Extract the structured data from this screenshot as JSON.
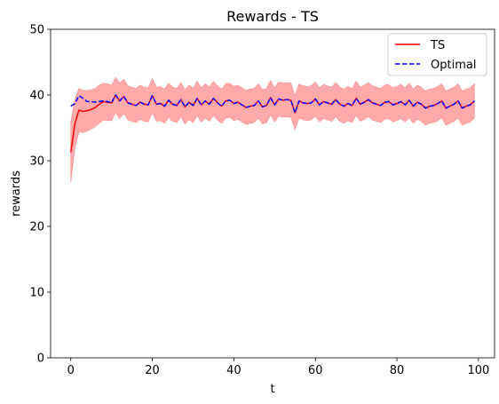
{
  "chart_data": {
    "type": "line",
    "title": "Rewards - TS",
    "xlabel": "t",
    "ylabel": "rewards",
    "xlim": [
      -4.95,
      103.95
    ],
    "ylim": [
      0,
      50
    ],
    "xticks": [
      0,
      20,
      40,
      60,
      80,
      100
    ],
    "yticks": [
      0,
      10,
      20,
      30,
      40,
      50
    ],
    "grid": false,
    "legend_position": "top-right",
    "band": {
      "series": "TS",
      "color": "#ffaaaa",
      "half_width": [
        4.6,
        3.7,
        3.3,
        3.2,
        3.1,
        3.0,
        2.9,
        2.9,
        2.8,
        2.8,
        2.7,
        2.7,
        2.7,
        2.6,
        2.6,
        2.6,
        2.6,
        2.6,
        2.6,
        2.6,
        2.6,
        2.6,
        2.6,
        2.6,
        2.6,
        2.6,
        2.6,
        2.6,
        2.6,
        2.6,
        2.6,
        2.6,
        2.6,
        2.6,
        2.6,
        2.6,
        2.6,
        2.6,
        2.6,
        2.6,
        2.6,
        2.6,
        2.6,
        2.6,
        2.6,
        2.6,
        2.6,
        2.6,
        2.6,
        2.6,
        2.6,
        2.6,
        2.6,
        2.6,
        2.6,
        2.6,
        2.6,
        2.6,
        2.6,
        2.6,
        2.6,
        2.6,
        2.6,
        2.6,
        2.6,
        2.6,
        2.6,
        2.6,
        2.6,
        2.6,
        2.6,
        2.6,
        2.6,
        2.6,
        2.6,
        2.6,
        2.6,
        2.6,
        2.6,
        2.6,
        2.6,
        2.6,
        2.6,
        2.6,
        2.6,
        2.6,
        2.6,
        2.6,
        2.6,
        2.6,
        2.6,
        2.6,
        2.6,
        2.6,
        2.6,
        2.6,
        2.6,
        2.6,
        2.6,
        2.6
      ]
    },
    "series": [
      {
        "name": "TS",
        "color": "#ff0000",
        "style": "solid",
        "values": [
          31.3,
          35.6,
          37.7,
          37.5,
          37.6,
          37.8,
          38.1,
          38.6,
          39.0,
          38.9,
          38.8,
          40.0,
          39.1,
          39.8,
          38.8,
          38.6,
          38.4,
          38.9,
          38.6,
          38.5,
          39.9,
          38.6,
          38.7,
          38.3,
          39.2,
          38.6,
          38.4,
          39.3,
          38.2,
          38.9,
          38.4,
          39.5,
          38.5,
          39.1,
          38.6,
          39.5,
          38.8,
          38.3,
          39.1,
          39.2,
          38.7,
          38.9,
          38.5,
          38.1,
          38.3,
          38.4,
          39.1,
          38.2,
          38.4,
          39.6,
          38.5,
          39.4,
          39.2,
          39.3,
          39.2,
          37.3,
          39.1,
          38.8,
          38.7,
          38.8,
          39.4,
          38.5,
          39.0,
          38.8,
          38.6,
          39.3,
          38.6,
          38.3,
          38.7,
          38.4,
          39.5,
          38.6,
          38.9,
          39.3,
          38.8,
          38.6,
          38.4,
          38.9,
          39.0,
          38.5,
          38.7,
          39.0,
          38.5,
          39.2,
          38.3,
          38.9,
          38.6,
          38.0,
          38.3,
          38.4,
          38.7,
          39.1,
          38.0,
          38.3,
          38.6,
          39.1,
          38.0,
          38.3,
          38.5,
          39.1
        ]
      },
      {
        "name": "Optimal",
        "color": "#0000ff",
        "style": "dashed",
        "values": [
          38.3,
          38.7,
          39.9,
          39.5,
          39.0,
          39.0,
          38.9,
          39.0,
          39.1,
          39.0,
          38.8,
          40.0,
          39.1,
          39.8,
          38.8,
          38.6,
          38.4,
          38.9,
          38.6,
          38.5,
          39.9,
          38.6,
          38.7,
          38.3,
          39.2,
          38.6,
          38.4,
          39.3,
          38.2,
          38.9,
          38.4,
          39.5,
          38.5,
          39.1,
          38.6,
          39.5,
          38.8,
          38.3,
          39.1,
          39.2,
          38.7,
          38.9,
          38.5,
          38.1,
          38.3,
          38.4,
          39.1,
          38.2,
          38.4,
          39.6,
          38.5,
          39.4,
          39.2,
          39.3,
          39.2,
          37.3,
          39.1,
          38.8,
          38.7,
          38.8,
          39.4,
          38.5,
          39.0,
          38.8,
          38.6,
          39.3,
          38.6,
          38.3,
          38.7,
          38.4,
          39.5,
          38.6,
          38.9,
          39.3,
          38.8,
          38.6,
          38.4,
          38.9,
          39.0,
          38.5,
          38.7,
          39.0,
          38.5,
          39.2,
          38.3,
          38.9,
          38.6,
          38.0,
          38.3,
          38.4,
          38.7,
          39.1,
          38.0,
          38.3,
          38.6,
          39.1,
          38.0,
          38.3,
          38.5,
          39.1
        ]
      }
    ]
  }
}
